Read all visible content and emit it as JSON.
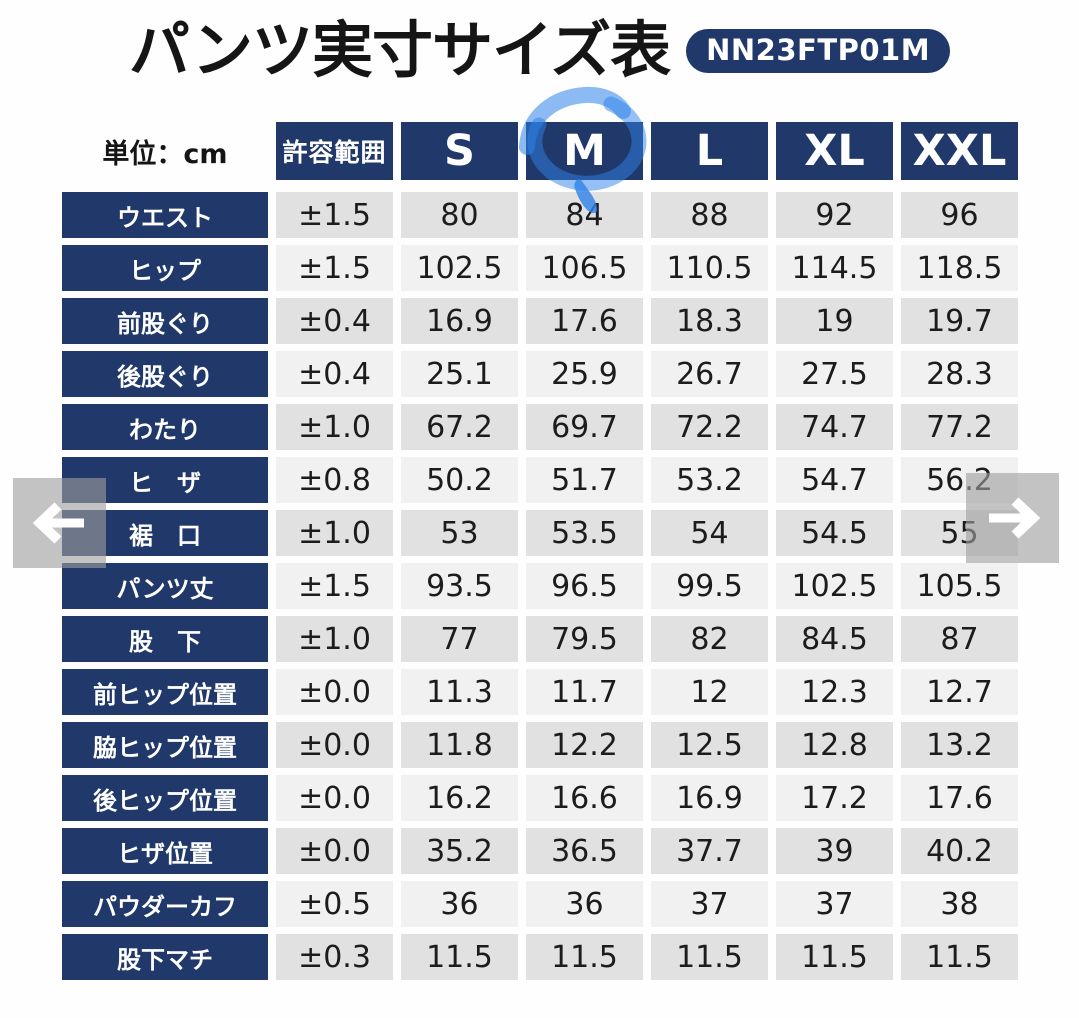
{
  "page": {
    "title": "パンツ実寸サイズ表",
    "product_code": "NN23FTP01M",
    "unit_label": "単位：cm"
  },
  "chart_data": {
    "type": "table",
    "title": "パンツ実寸サイズ表",
    "unit": "cm",
    "columns": [
      "許容範囲",
      "S",
      "M",
      "L",
      "XL",
      "XXL"
    ],
    "highlighted_column": "M",
    "rows": [
      {
        "label": "ウエスト",
        "values": [
          "±1.5",
          "80",
          "84",
          "88",
          "92",
          "96"
        ]
      },
      {
        "label": "ヒップ",
        "values": [
          "±1.5",
          "102.5",
          "106.5",
          "110.5",
          "114.5",
          "118.5"
        ]
      },
      {
        "label": "前股ぐり",
        "values": [
          "±0.4",
          "16.9",
          "17.6",
          "18.3",
          "19",
          "19.7"
        ]
      },
      {
        "label": "後股ぐり",
        "values": [
          "±0.4",
          "25.1",
          "25.9",
          "26.7",
          "27.5",
          "28.3"
        ]
      },
      {
        "label": "わたり",
        "values": [
          "±1.0",
          "67.2",
          "69.7",
          "72.2",
          "74.7",
          "77.2"
        ]
      },
      {
        "label": "ヒ　ザ",
        "values": [
          "±0.8",
          "50.2",
          "51.7",
          "53.2",
          "54.7",
          "56.2"
        ]
      },
      {
        "label": "裾　口",
        "values": [
          "±1.0",
          "53",
          "53.5",
          "54",
          "54.5",
          "55"
        ]
      },
      {
        "label": "パンツ丈",
        "values": [
          "±1.5",
          "93.5",
          "96.5",
          "99.5",
          "102.5",
          "105.5"
        ]
      },
      {
        "label": "股　下",
        "values": [
          "±1.0",
          "77",
          "79.5",
          "82",
          "84.5",
          "87"
        ]
      },
      {
        "label": "前ヒップ位置",
        "values": [
          "±0.0",
          "11.3",
          "11.7",
          "12",
          "12.3",
          "12.7"
        ]
      },
      {
        "label": "脇ヒップ位置",
        "values": [
          "±0.0",
          "11.8",
          "12.2",
          "12.5",
          "12.8",
          "13.2"
        ]
      },
      {
        "label": "後ヒップ位置",
        "values": [
          "±0.0",
          "16.2",
          "16.6",
          "16.9",
          "17.2",
          "17.6"
        ]
      },
      {
        "label": "ヒザ位置",
        "values": [
          "±0.0",
          "35.2",
          "36.5",
          "37.7",
          "39",
          "40.2"
        ]
      },
      {
        "label": "パウダーカフ",
        "values": [
          "±0.5",
          "36",
          "36",
          "37",
          "37",
          "38"
        ]
      },
      {
        "label": "股下マチ",
        "values": [
          "±0.3",
          "11.5",
          "11.5",
          "11.5",
          "11.5",
          "11.5"
        ]
      }
    ]
  },
  "colors": {
    "navy": "#20386a",
    "cell_dark": "#e1e1e1",
    "cell_light": "#f1f1f1",
    "marker_blue": "#2e82e8",
    "overlay_gray": "rgba(158,158,158,0.62)"
  }
}
